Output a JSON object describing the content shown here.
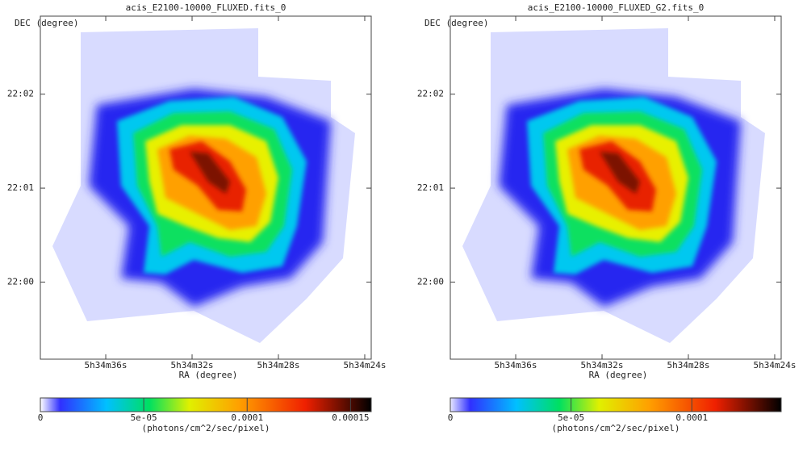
{
  "panels": [
    {
      "title": "acis_E2100-10000_FLUXED.fits_0",
      "y_label": "DEC (degree)",
      "x_label": "RA (degree)",
      "xlim": [
        39.03,
        23.7
      ],
      "xticks": [
        {
          "value": 36,
          "label": "5h34m36s"
        },
        {
          "value": 32,
          "label": "5h34m32s"
        },
        {
          "value": 28,
          "label": "5h34m28s"
        },
        {
          "value": 24,
          "label": "5h34m24s"
        }
      ],
      "ylim": [
        -0.82,
        2.83
      ],
      "yticks": [
        {
          "value": 2,
          "label": "22:02"
        },
        {
          "value": 1,
          "label": "22:01"
        },
        {
          "value": 0,
          "label": "22:00"
        }
      ],
      "colorbar": {
        "lim": [
          0,
          0.00016
        ],
        "ticks": [
          0,
          {
            "value": 5e-05,
            "label": "5e-05"
          },
          0.0001,
          0.00015
        ],
        "label": "(photons/cm^2/sec/pixel)"
      }
    },
    {
      "title": "acis_E2100-10000_FLUXED_G2.fits_0",
      "y_label": "DEC (degree)",
      "x_label": "RA (degree)",
      "xlim": [
        39.03,
        23.7
      ],
      "xticks": [
        {
          "value": 36,
          "label": "5h34m36s"
        },
        {
          "value": 32,
          "label": "5h34m32s"
        },
        {
          "value": 28,
          "label": "5h34m28s"
        },
        {
          "value": 24,
          "label": "5h34m24s"
        }
      ],
      "ylim": [
        -0.82,
        2.83
      ],
      "yticks": [
        {
          "value": 2,
          "label": "22:02"
        },
        {
          "value": 1,
          "label": "22:01"
        },
        {
          "value": 0,
          "label": "22:00"
        }
      ],
      "colorbar": {
        "lim": [
          0,
          0.000137
        ],
        "ticks": [
          0,
          {
            "value": 5e-05,
            "label": "5e-05"
          },
          0.0001
        ],
        "label": "(photons/cm^2/sec/pixel)"
      }
    }
  ]
}
